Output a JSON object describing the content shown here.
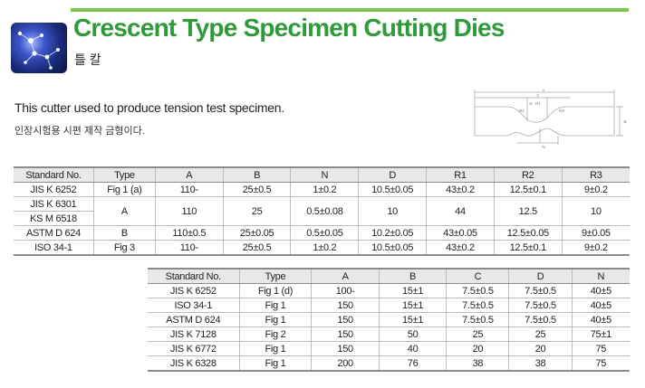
{
  "header": {
    "title": "Crescent Type Specimen Cutting Dies",
    "subtitle": "틀 칼",
    "accent_color": "#2f9a3a",
    "line_color": "#7ec24a",
    "logo_icon": "molecule-logo-icon"
  },
  "description": {
    "english": "This cutter used to produce tension test specimen.",
    "korean": "인장시험용 시편 제작 금형이다."
  },
  "diagram": {
    "labels": [
      "A",
      "C",
      "D",
      "R1",
      "R2",
      "R3",
      "B",
      "N"
    ]
  },
  "table1": {
    "headers": [
      "Standard No.",
      "Type",
      "A",
      "B",
      "N",
      "D",
      "R1",
      "R2",
      "R3"
    ],
    "rows": [
      {
        "standard": "JIS K 6252",
        "type": "Fig 1 (a)",
        "A": "110-",
        "B": "25±0.5",
        "N": "1±0.2",
        "D": "10.5±0.05",
        "R1": "43±0.2",
        "R2": "12.5±0.1",
        "R3": "9±0.2"
      },
      {
        "standard": "JIS K 6301",
        "standard2": "KS M 6518",
        "type": "A",
        "A": "110",
        "B": "25",
        "N": "0.5±0.08",
        "D": "10",
        "R1": "44",
        "R2": "12.5",
        "R3": "10"
      },
      {
        "standard": "ASTM D 624",
        "type": "B",
        "A": "110±0.5",
        "B": "25±0.05",
        "N": "0.5±0.05",
        "D": "10.2±0.05",
        "R1": "43±0.05",
        "R2": "12.5±0.05",
        "R3": "9±0.05"
      },
      {
        "standard": "ISO 34-1",
        "type": "Fig 3",
        "A": "110-",
        "B": "25±0.5",
        "N": "1±0.2",
        "D": "10.5±0.05",
        "R1": "43±0.2",
        "R2": "12.5±0.1",
        "R3": "9±0.2"
      }
    ]
  },
  "table2": {
    "headers": [
      "Standard No.",
      "Type",
      "A",
      "B",
      "C",
      "D",
      "N"
    ],
    "rows": [
      [
        "JIS K 6252",
        "Fig 1 (d)",
        "100-",
        "15±1",
        "7.5±0.5",
        "7.5±0.5",
        "40±5"
      ],
      [
        "ISO 34-1",
        "Fig 1",
        "150",
        "15±1",
        "7.5±0.5",
        "7.5±0.5",
        "40±5"
      ],
      [
        "ASTM D 624",
        "Fig 1",
        "150",
        "15±1",
        "7.5±0.5",
        "7.5±0.5",
        "40±5"
      ],
      [
        "JIS K 7128",
        "Fig 2",
        "150",
        "50",
        "25",
        "25",
        "75±1"
      ],
      [
        "JIS K 6772",
        "Fig 1",
        "150",
        "40",
        "20",
        "20",
        "75"
      ],
      [
        "JIS K 6328",
        "Fig 1",
        "200",
        "76",
        "38",
        "38",
        "75"
      ]
    ]
  }
}
